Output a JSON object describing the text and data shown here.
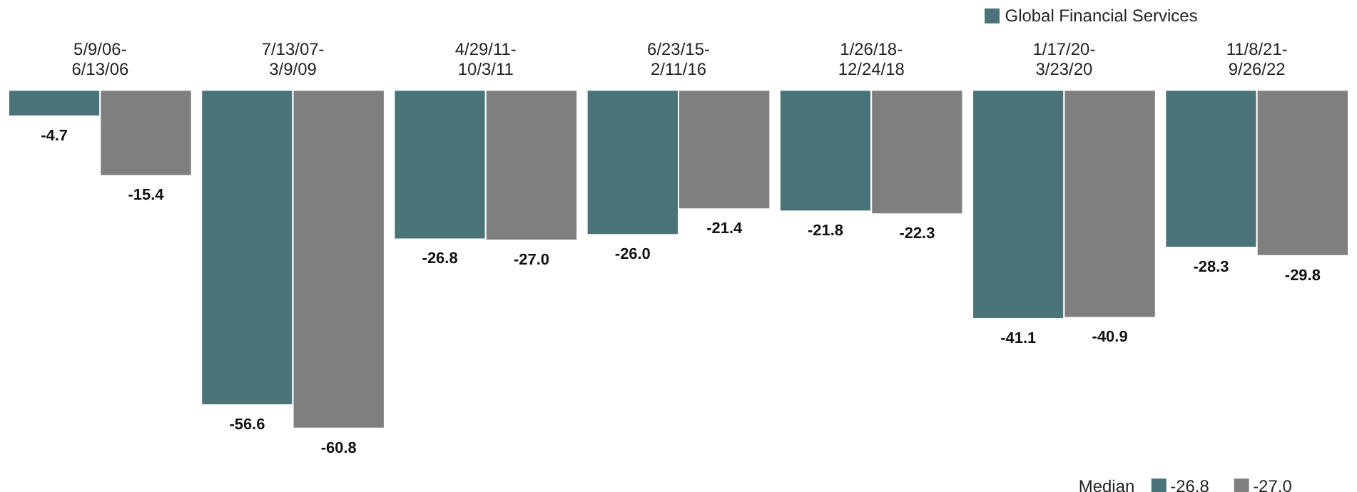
{
  "chart_data": {
    "type": "bar",
    "categories": [
      "5/9/06-6/13/06",
      "7/13/07-3/9/09",
      "4/29/11-10/3/11",
      "6/23/15-2/11/16",
      "1/26/18-12/24/18",
      "1/17/20-3/23/20",
      "11/8/21-9/26/22"
    ],
    "series": [
      {
        "name": "Global Financial Services",
        "color": "#4a7479",
        "values": [
          -4.7,
          -56.6,
          -26.8,
          -26.0,
          -21.8,
          -41.1,
          -28.3
        ],
        "value_labels": [
          "-4.7",
          "-56.6",
          "-26.8",
          "-26.0",
          "-21.8",
          "-41.1",
          "-28.3"
        ]
      },
      {
        "color": "#7f7f7f",
        "values": [
          -15.4,
          -60.8,
          -27.0,
          -21.4,
          -22.3,
          -40.9,
          -29.8
        ],
        "value_labels": [
          "-15.4",
          "-60.8",
          "-27.0",
          "-21.4",
          "-22.3",
          "-40.9",
          "-29.8"
        ]
      }
    ],
    "legend": "top right",
    "annotations": [
      "Median",
      "-26.8",
      "-27.0"
    ]
  }
}
